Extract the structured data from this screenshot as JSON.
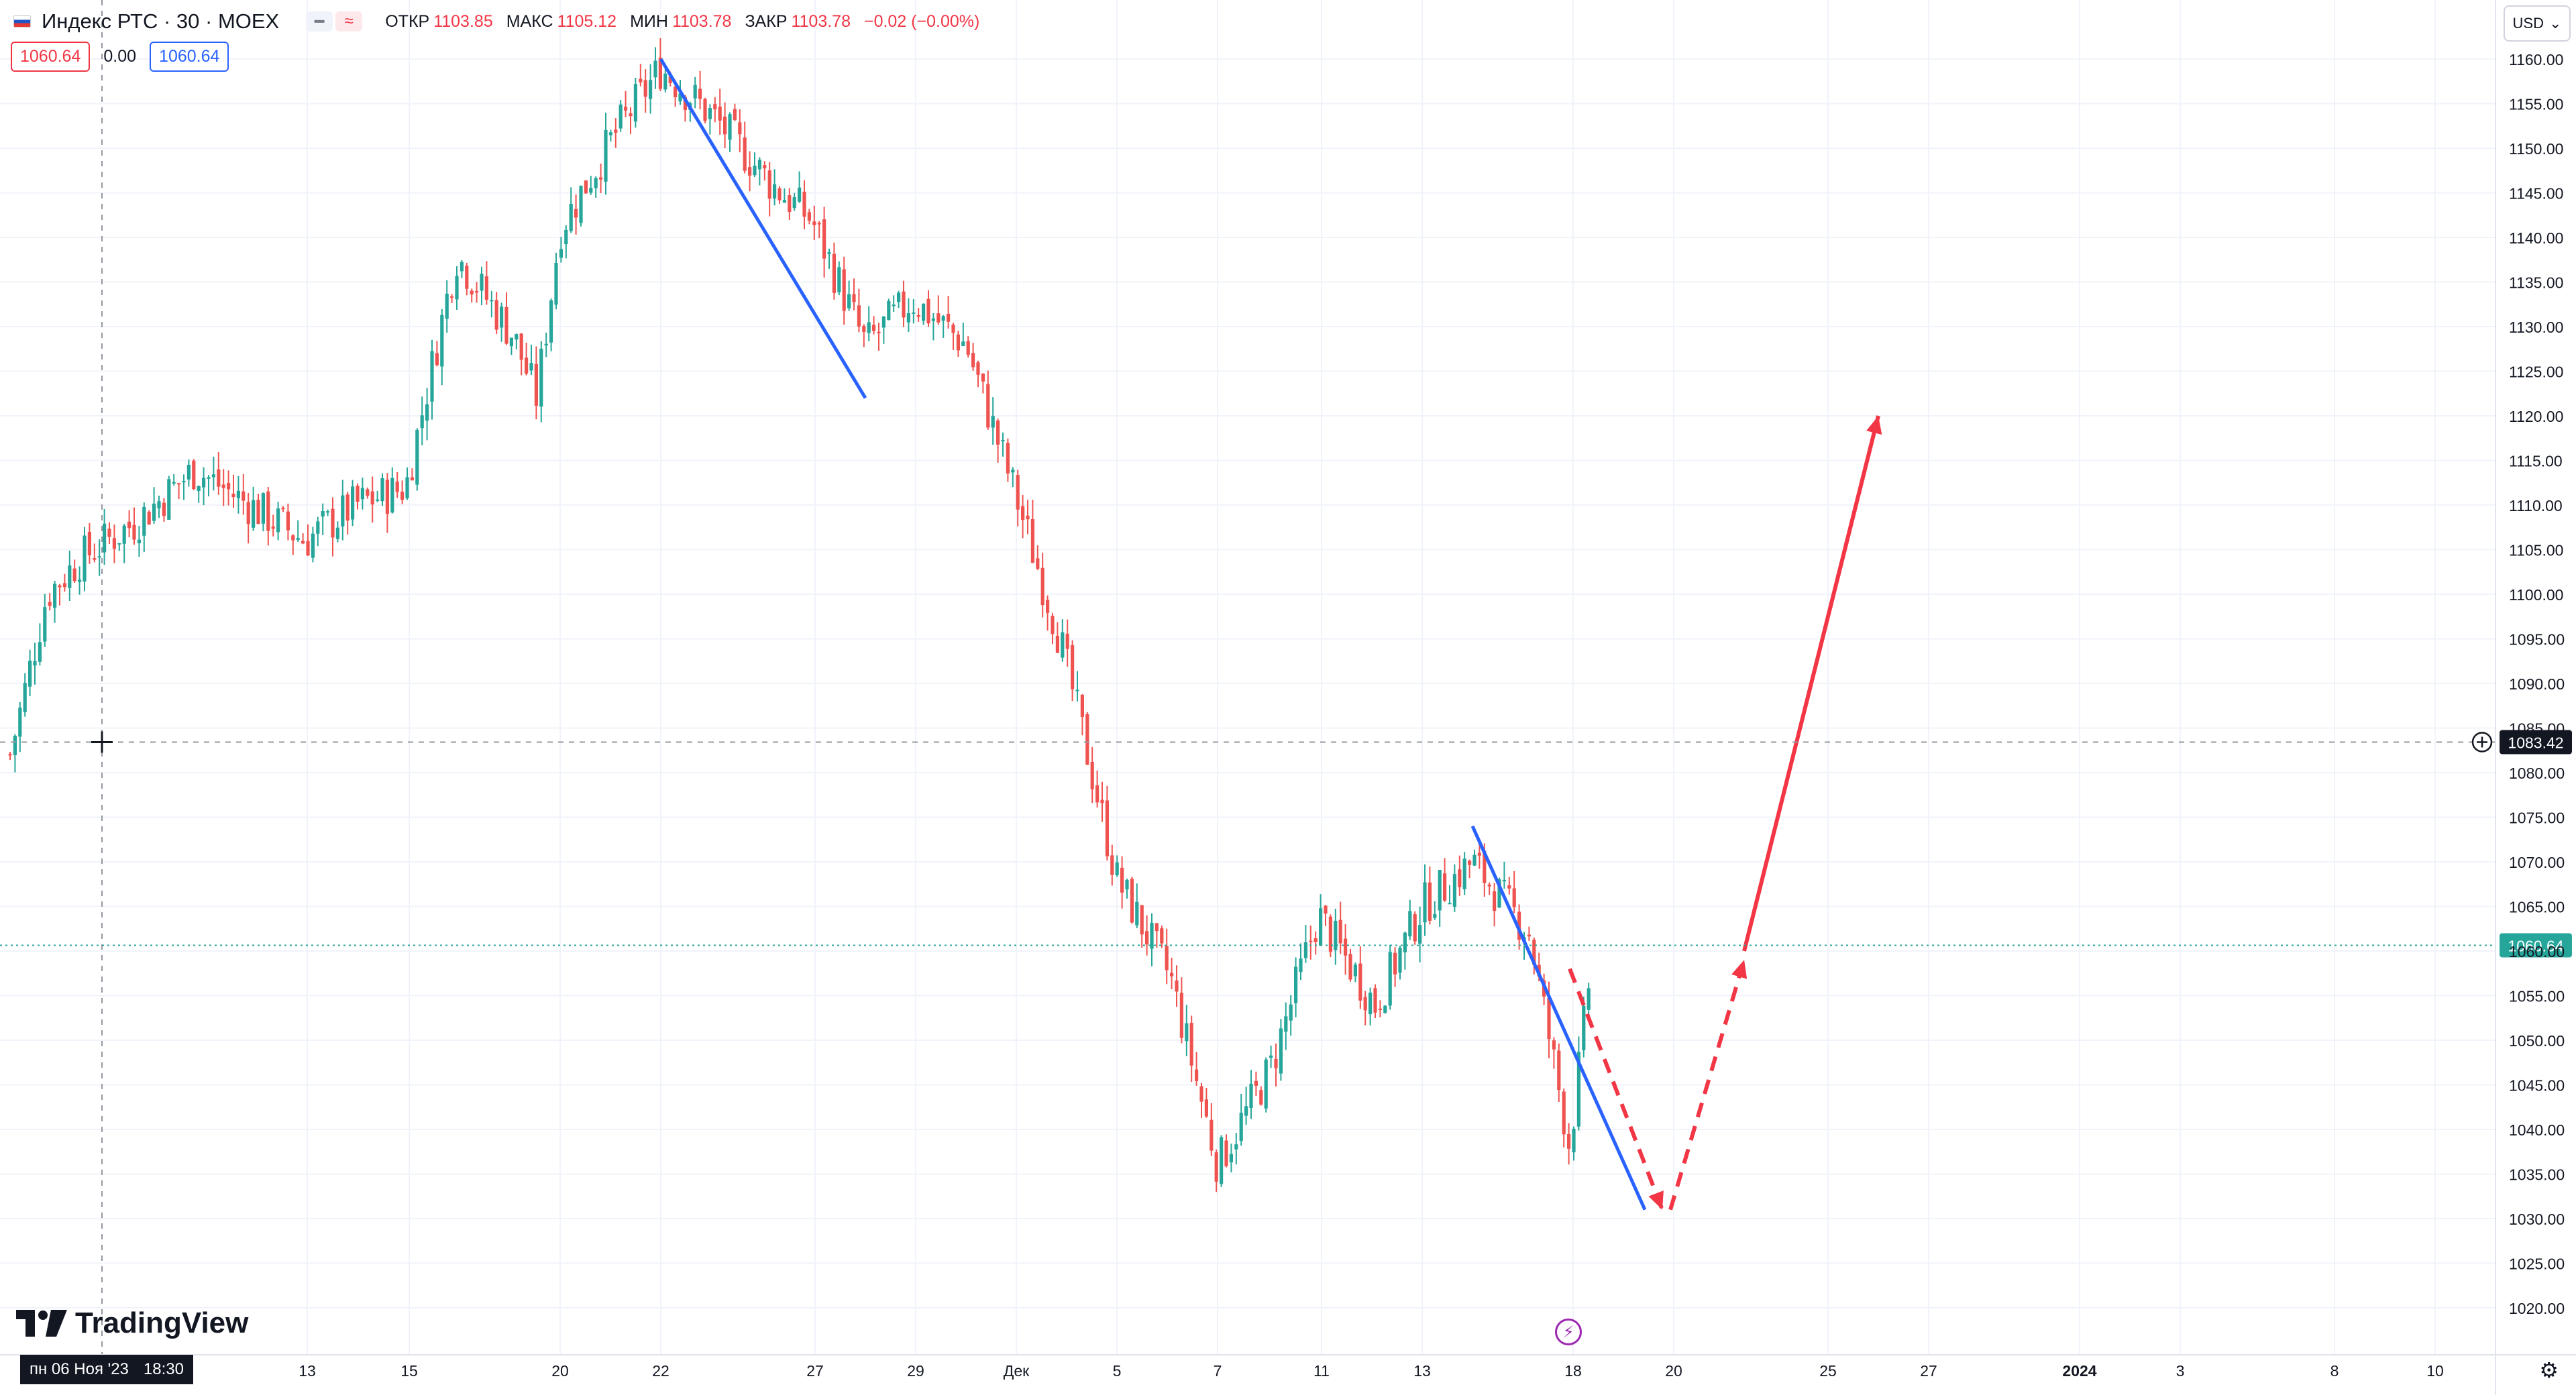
{
  "legend": {
    "symbol": "Индекс РТС · 30 · MOEX",
    "open_label": "ОТКР",
    "open": "1103.85",
    "high_label": "МАКС",
    "high": "1105.12",
    "low_label": "МИН",
    "low": "1103.78",
    "close_label": "ЗАКР",
    "close": "1103.78",
    "change": "−0.02 (−0.00%)",
    "bid": "1060.64",
    "spread": "0.00",
    "ask": "1060.64"
  },
  "currency": "USD",
  "logo_text": "TradingView",
  "crosshair": {
    "price_label": "1083.42",
    "date_label": "пн 06 Ноя '23",
    "time_label": "18:30"
  },
  "last_price_label": "1060.64",
  "colors": {
    "up": "#26a69a",
    "down": "#ef5350",
    "trend_line": "#2962ff",
    "forecast": "#f23645",
    "last_price": "#26a69a"
  },
  "chart_data": {
    "type": "candlestick",
    "symbol": "Индекс РТС",
    "timeframe": "30",
    "exchange": "MOEX",
    "y_axis": {
      "ticks": [
        1020,
        1025,
        1030,
        1035,
        1040,
        1045,
        1050,
        1055,
        1060,
        1065,
        1070,
        1075,
        1080,
        1085,
        1090,
        1095,
        1100,
        1105,
        1110,
        1115,
        1120,
        1125,
        1130,
        1135,
        1140,
        1145,
        1150,
        1155,
        1160
      ],
      "tick_labels": [
        "1020.00",
        "1025.00",
        "1030.00",
        "1035.00",
        "1040.00",
        "1045.00",
        "1050.00",
        "1055.00",
        "1060.00",
        "1065.00",
        "1070.00",
        "1075.00",
        "1080.00",
        "1085.00",
        "1090.00",
        "1095.00",
        "1100.00",
        "1105.00",
        "1110.00",
        "1115.00",
        "1120.00",
        "1125.00",
        "1130.00",
        "1135.00",
        "1140.00",
        "1145.00",
        "1150.00",
        "1155.00",
        "1160.00"
      ],
      "range": [
        1017,
        1164
      ]
    },
    "x_axis": {
      "tick_labels": [
        "13",
        "15",
        "20",
        "22",
        "27",
        "29",
        "Дек",
        "5",
        "7",
        "11",
        "13",
        "18",
        "20",
        "25",
        "27",
        "2024",
        "3",
        "8",
        "10"
      ]
    },
    "price_path": [
      [
        "06 Ноя",
        1082
      ],
      [
        "07 Ноя",
        1100
      ],
      [
        "08 Ноя",
        1104
      ],
      [
        "09 Ноя",
        1108
      ],
      [
        "10 Ноя",
        1114
      ],
      [
        "13 Ноя",
        1106
      ],
      [
        "14 Ноя",
        1110
      ],
      [
        "15 Ноя",
        1112
      ],
      [
        "16 Ноя",
        1138
      ],
      [
        "17 Ноя",
        1129
      ],
      [
        "17 Ноя",
        1122
      ],
      [
        "20 Ноя",
        1141
      ],
      [
        "21 Ноя",
        1152
      ],
      [
        "22 Ноя",
        1159
      ],
      [
        "23 Ноя",
        1153
      ],
      [
        "24 Ноя",
        1146
      ],
      [
        "27 Ноя",
        1142
      ],
      [
        "28 Ноя",
        1128
      ],
      [
        "29 Ноя",
        1133
      ],
      [
        "30 Ноя",
        1128
      ],
      [
        "01 Дек",
        1112
      ],
      [
        "04 Дек",
        1095
      ],
      [
        "04 Дек",
        1084
      ],
      [
        "05 Дек",
        1068
      ],
      [
        "06 Дек",
        1057
      ],
      [
        "07 Дек",
        1036
      ],
      [
        "08 Дек",
        1047
      ],
      [
        "11 Дек",
        1064
      ],
      [
        "12 Дек",
        1054
      ],
      [
        "13 Дек",
        1065
      ],
      [
        "14 Дек",
        1070
      ],
      [
        "15 Дек",
        1062
      ],
      [
        "18 Дек",
        1038
      ],
      [
        "18 Дек",
        1060.64
      ]
    ],
    "drawings": [
      {
        "type": "trend_line",
        "color": "blue",
        "points": [
          [
            "22 Ноя",
            1160
          ],
          [
            "28 Ноя",
            1122
          ]
        ]
      },
      {
        "type": "trend_line",
        "color": "blue",
        "points": [
          [
            "14 Дек",
            1074
          ],
          [
            "19 Дек",
            1031
          ]
        ]
      },
      {
        "type": "arrow_dashed",
        "color": "red",
        "points": [
          [
            "18 Дек",
            1058
          ],
          [
            "19 Дек",
            1031
          ]
        ]
      },
      {
        "type": "arrow_dashed",
        "color": "red",
        "points": [
          [
            "20 Дек",
            1031
          ],
          [
            "21 Дек",
            1059
          ]
        ]
      },
      {
        "type": "arrow",
        "color": "red",
        "points": [
          [
            "21 Дек",
            1060
          ],
          [
            "26 Дек",
            1120
          ]
        ]
      }
    ]
  }
}
